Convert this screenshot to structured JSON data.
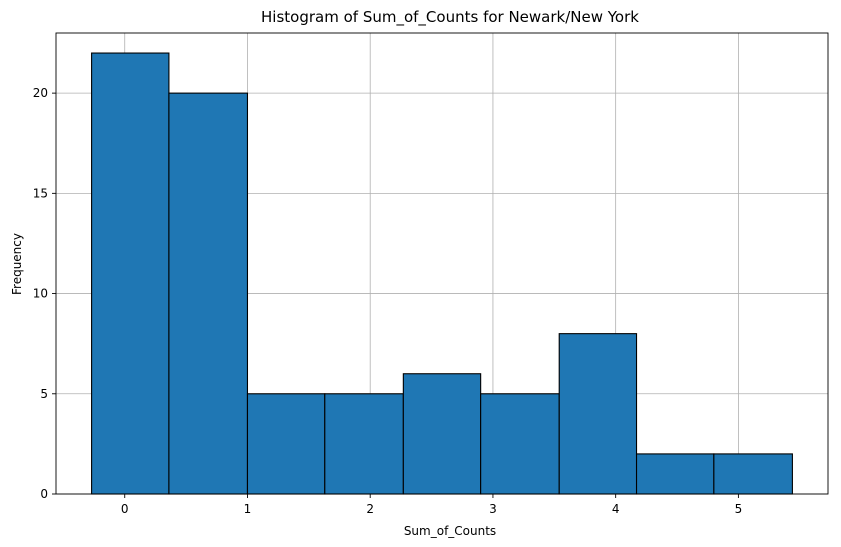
{
  "chart_data": {
    "type": "bar",
    "title": "Histogram of Sum_of_Counts for Newark/New York",
    "xlabel": "Sum_of_Counts",
    "ylabel": "Frequency",
    "bin_edges": [
      -0.27,
      0.36,
      1.0,
      1.63,
      2.27,
      2.9,
      3.54,
      4.17,
      4.8,
      5.44
    ],
    "values": [
      22,
      20,
      5,
      5,
      6,
      5,
      8,
      2,
      2
    ],
    "xlim": [
      -0.56,
      5.73
    ],
    "ylim": [
      0,
      23
    ],
    "xticks": [
      0,
      1,
      2,
      3,
      4,
      5
    ],
    "yticks": [
      0,
      5,
      10,
      15,
      20
    ],
    "grid": true,
    "colors": {
      "bar_fill": "#1f77b4",
      "bar_edge": "#000000",
      "grid": "#b0b0b0"
    }
  }
}
